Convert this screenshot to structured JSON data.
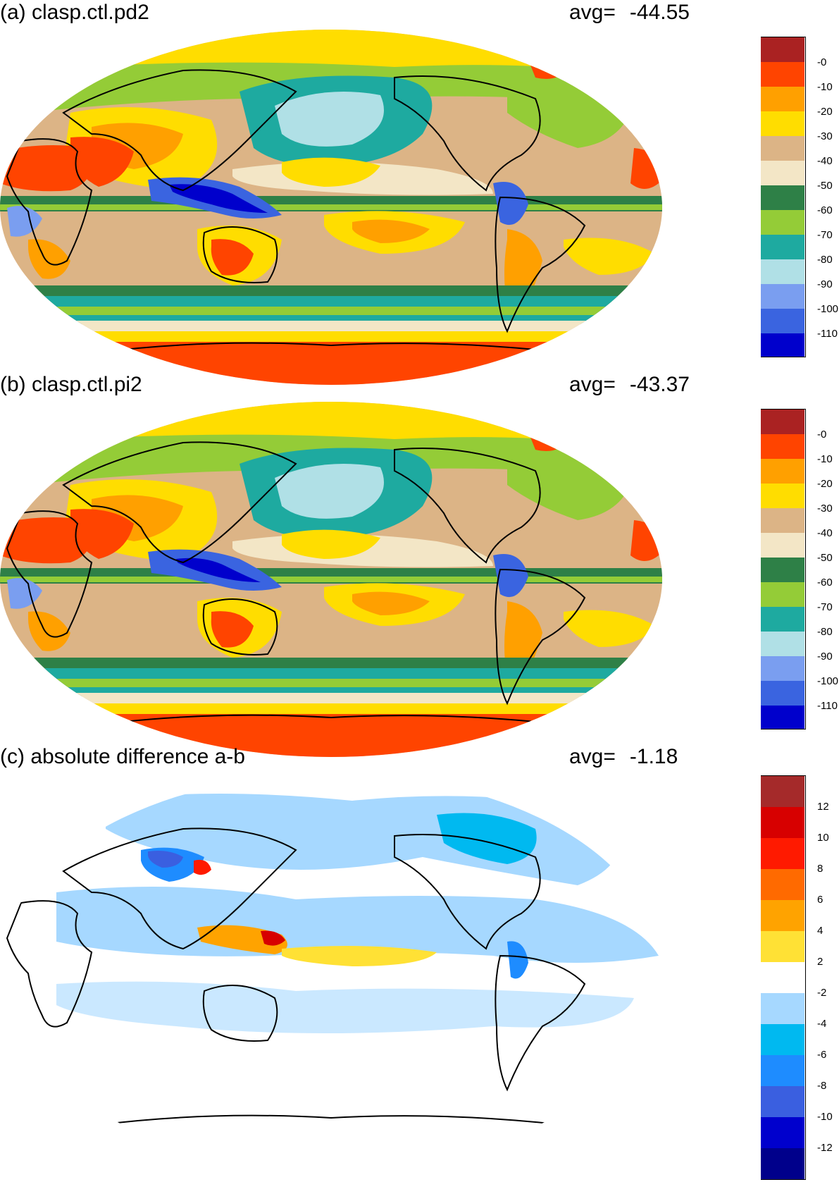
{
  "panels": [
    {
      "title": "(a) clasp.ctl.pd2",
      "avg_label": "avg=",
      "avg_value": "-44.55",
      "colorbar": {
        "labels": [
          "-0",
          "-10",
          "-20",
          "-30",
          "-40",
          "-50",
          "-60",
          "-70",
          "-80",
          "-90",
          "-100",
          "-110"
        ],
        "colors": [
          "#aa2222",
          "#ff4400",
          "#ffa000",
          "#ffdd00",
          "#dcb486",
          "#f3e6c6",
          "#2e8047",
          "#94cc37",
          "#1eaaa0",
          "#b0e0e6",
          "#7a9ef0",
          "#3a64e0",
          "#0000cc"
        ]
      }
    },
    {
      "title": "(b) clasp.ctl.pi2",
      "avg_label": "avg=",
      "avg_value": "-43.37",
      "colorbar": {
        "labels": [
          "-0",
          "-10",
          "-20",
          "-30",
          "-40",
          "-50",
          "-60",
          "-70",
          "-80",
          "-90",
          "-100",
          "-110"
        ],
        "colors": [
          "#aa2222",
          "#ff4400",
          "#ffa000",
          "#ffdd00",
          "#dcb486",
          "#f3e6c6",
          "#2e8047",
          "#94cc37",
          "#1eaaa0",
          "#b0e0e6",
          "#7a9ef0",
          "#3a64e0",
          "#0000cc"
        ]
      }
    },
    {
      "title": "(c) absolute difference a-b",
      "avg_label": "avg=",
      "avg_value": "-1.18",
      "colorbar": {
        "labels": [
          "12",
          "10",
          "8",
          "6",
          "4",
          "2",
          "-2",
          "-4",
          "-6",
          "-8",
          "-10",
          "-12"
        ],
        "colors": [
          "#a52a2a",
          "#d70000",
          "#ff1a00",
          "#ff6a00",
          "#ffa300",
          "#ffe135",
          "#ffffff",
          "#a6d8ff",
          "#00b9f0",
          "#1e8cff",
          "#3a5fe0",
          "#0000cd",
          "#00008b"
        ]
      }
    }
  ]
}
